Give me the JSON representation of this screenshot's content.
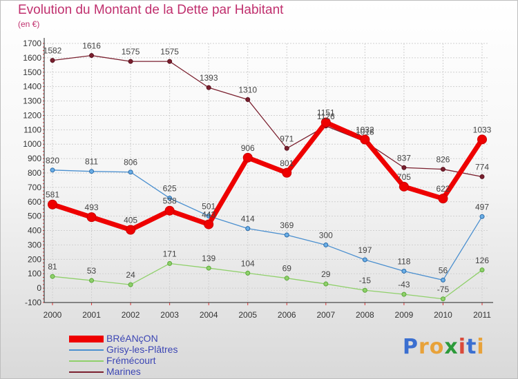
{
  "title": "Evolution du Montant de la Dette par Habitant",
  "subtitle": "(en €)",
  "logo": {
    "letters": [
      "P",
      "r",
      "o",
      "x",
      "i",
      "t",
      "i"
    ],
    "colors": [
      "#3b6fd0",
      "#e8a23a",
      "#e8a23a",
      "#2c9a3a",
      "#d94a3a",
      "#3b6fd0",
      "#e8a23a"
    ]
  },
  "chart_data": {
    "type": "line",
    "title": "Evolution du Montant de la Dette par Habitant",
    "ylabel": "(en €)",
    "xlabel": "",
    "x": [
      "2000",
      "2001",
      "2002",
      "2003",
      "2004",
      "2005",
      "2006",
      "2007",
      "2008",
      "2009",
      "2010",
      "2011"
    ],
    "ylim": [
      -100,
      1700
    ],
    "yticks": [
      -100,
      0,
      100,
      200,
      300,
      400,
      500,
      600,
      700,
      800,
      900,
      1000,
      1100,
      1200,
      1300,
      1400,
      1500,
      1600,
      1700
    ],
    "grid": true,
    "legend": "bottom-left",
    "series": [
      {
        "name": "Marines",
        "color": "#7a1f2e",
        "values": [
          1582,
          1616,
          1575,
          1575,
          1393,
          1310,
          971,
          1126,
          1018,
          837,
          826,
          774
        ]
      },
      {
        "name": "Grisy-les-Plâtres",
        "color": "#4a8fcf",
        "values": [
          820,
          811,
          806,
          625,
          501,
          414,
          369,
          300,
          197,
          118,
          56,
          497
        ]
      },
      {
        "name": "Frémécourt",
        "color": "#8fd06a",
        "values": [
          81,
          53,
          24,
          171,
          139,
          104,
          69,
          29,
          -15,
          -43,
          -75,
          126
        ]
      },
      {
        "name": "BRéANçON",
        "color": "#ee0000",
        "values": [
          581,
          493,
          405,
          538,
          443,
          906,
          801,
          1151,
          1032,
          705,
          622,
          1033
        ]
      }
    ]
  }
}
